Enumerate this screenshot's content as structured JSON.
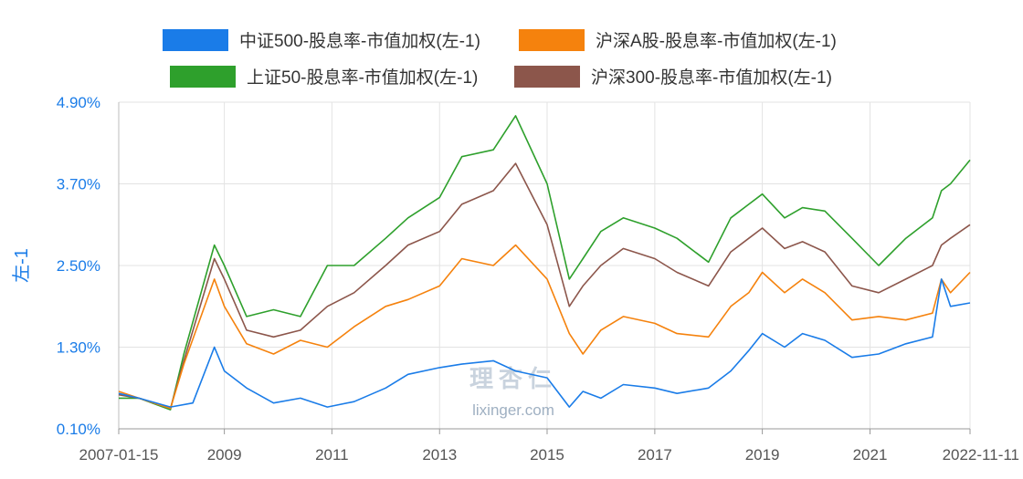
{
  "chart_data": {
    "type": "line",
    "ylabel": "左-1",
    "yticks": [
      "0.10%",
      "1.30%",
      "2.50%",
      "3.70%",
      "4.90%"
    ],
    "ylim": [
      0.1,
      4.9
    ],
    "xticks": [
      "2007-01-15",
      "2009",
      "2011",
      "2013",
      "2015",
      "2017",
      "2019",
      "2021",
      "2022-11-11"
    ],
    "xlim": [
      "2007-01-15",
      "2022-11-11"
    ],
    "grid": true,
    "legend_position": "top",
    "watermark": [
      "理杏仁",
      "lixinger.com"
    ],
    "series": [
      {
        "name": "中证500-股息率-市值加权(左-1)",
        "color": "#1a7ce8",
        "points": [
          [
            "2007-01-15",
            0.62
          ],
          [
            "2007-06-01",
            0.55
          ],
          [
            "2008-01-01",
            0.42
          ],
          [
            "2008-06-01",
            0.48
          ],
          [
            "2008-10-25",
            1.3
          ],
          [
            "2009-01-01",
            0.95
          ],
          [
            "2009-06-01",
            0.7
          ],
          [
            "2009-12-01",
            0.48
          ],
          [
            "2010-06-01",
            0.55
          ],
          [
            "2010-12-01",
            0.42
          ],
          [
            "2011-06-01",
            0.5
          ],
          [
            "2012-01-01",
            0.7
          ],
          [
            "2012-06-01",
            0.9
          ],
          [
            "2013-01-01",
            1.0
          ],
          [
            "2013-06-01",
            1.05
          ],
          [
            "2014-01-01",
            1.1
          ],
          [
            "2014-06-01",
            0.95
          ],
          [
            "2015-01-01",
            0.85
          ],
          [
            "2015-06-01",
            0.42
          ],
          [
            "2015-09-01",
            0.65
          ],
          [
            "2016-01-01",
            0.55
          ],
          [
            "2016-06-01",
            0.75
          ],
          [
            "2017-01-01",
            0.7
          ],
          [
            "2017-06-01",
            0.62
          ],
          [
            "2018-01-01",
            0.7
          ],
          [
            "2018-06-01",
            0.95
          ],
          [
            "2018-10-01",
            1.25
          ],
          [
            "2019-01-01",
            1.5
          ],
          [
            "2019-06-01",
            1.3
          ],
          [
            "2019-10-01",
            1.5
          ],
          [
            "2020-03-01",
            1.4
          ],
          [
            "2020-09-01",
            1.15
          ],
          [
            "2021-03-01",
            1.2
          ],
          [
            "2021-09-01",
            1.35
          ],
          [
            "2022-03-01",
            1.45
          ],
          [
            "2022-05-01",
            2.3
          ],
          [
            "2022-07-01",
            1.9
          ],
          [
            "2022-11-11",
            1.95
          ]
        ]
      },
      {
        "name": "沪深A股-股息率-市值加权(左-1)",
        "color": "#f5820d",
        "points": [
          [
            "2007-01-15",
            0.65
          ],
          [
            "2007-06-01",
            0.55
          ],
          [
            "2008-01-01",
            0.4
          ],
          [
            "2008-04-01",
            1.05
          ],
          [
            "2008-10-25",
            2.3
          ],
          [
            "2009-01-01",
            1.9
          ],
          [
            "2009-06-01",
            1.35
          ],
          [
            "2009-12-01",
            1.2
          ],
          [
            "2010-06-01",
            1.4
          ],
          [
            "2010-12-01",
            1.3
          ],
          [
            "2011-06-01",
            1.6
          ],
          [
            "2012-01-01",
            1.9
          ],
          [
            "2012-06-01",
            2.0
          ],
          [
            "2013-01-01",
            2.2
          ],
          [
            "2013-06-01",
            2.6
          ],
          [
            "2014-01-01",
            2.5
          ],
          [
            "2014-06-01",
            2.8
          ],
          [
            "2015-01-01",
            2.3
          ],
          [
            "2015-06-01",
            1.5
          ],
          [
            "2015-09-01",
            1.2
          ],
          [
            "2016-01-01",
            1.55
          ],
          [
            "2016-06-01",
            1.75
          ],
          [
            "2017-01-01",
            1.65
          ],
          [
            "2017-06-01",
            1.5
          ],
          [
            "2018-01-01",
            1.45
          ],
          [
            "2018-06-01",
            1.9
          ],
          [
            "2018-10-01",
            2.1
          ],
          [
            "2019-01-01",
            2.4
          ],
          [
            "2019-06-01",
            2.1
          ],
          [
            "2019-10-01",
            2.3
          ],
          [
            "2020-03-01",
            2.1
          ],
          [
            "2020-09-01",
            1.7
          ],
          [
            "2021-03-01",
            1.75
          ],
          [
            "2021-09-01",
            1.7
          ],
          [
            "2022-03-01",
            1.8
          ],
          [
            "2022-05-01",
            2.3
          ],
          [
            "2022-07-01",
            2.1
          ],
          [
            "2022-11-11",
            2.4
          ]
        ]
      },
      {
        "name": "上证50-股息率-市值加权(左-1)",
        "color": "#2ea02c",
        "points": [
          [
            "2007-01-15",
            0.55
          ],
          [
            "2007-06-01",
            0.55
          ],
          [
            "2008-01-01",
            0.38
          ],
          [
            "2008-04-01",
            1.2
          ],
          [
            "2008-10-25",
            2.8
          ],
          [
            "2009-01-01",
            2.5
          ],
          [
            "2009-06-01",
            1.75
          ],
          [
            "2009-12-01",
            1.85
          ],
          [
            "2010-06-01",
            1.75
          ],
          [
            "2010-12-01",
            2.5
          ],
          [
            "2011-06-01",
            2.5
          ],
          [
            "2012-01-01",
            2.9
          ],
          [
            "2012-06-01",
            3.2
          ],
          [
            "2013-01-01",
            3.5
          ],
          [
            "2013-06-01",
            4.1
          ],
          [
            "2014-01-01",
            4.2
          ],
          [
            "2014-06-01",
            4.7
          ],
          [
            "2015-01-01",
            3.7
          ],
          [
            "2015-06-01",
            2.3
          ],
          [
            "2015-09-01",
            2.6
          ],
          [
            "2016-01-01",
            3.0
          ],
          [
            "2016-06-01",
            3.2
          ],
          [
            "2017-01-01",
            3.05
          ],
          [
            "2017-06-01",
            2.9
          ],
          [
            "2018-01-01",
            2.55
          ],
          [
            "2018-06-01",
            3.2
          ],
          [
            "2018-10-01",
            3.4
          ],
          [
            "2019-01-01",
            3.55
          ],
          [
            "2019-06-01",
            3.2
          ],
          [
            "2019-10-01",
            3.35
          ],
          [
            "2020-03-01",
            3.3
          ],
          [
            "2020-09-01",
            2.9
          ],
          [
            "2021-03-01",
            2.5
          ],
          [
            "2021-09-01",
            2.9
          ],
          [
            "2022-03-01",
            3.2
          ],
          [
            "2022-05-01",
            3.6
          ],
          [
            "2022-07-01",
            3.7
          ],
          [
            "2022-11-11",
            4.05
          ]
        ]
      },
      {
        "name": "沪深300-股息率-市值加权(左-1)",
        "color": "#8c564b",
        "points": [
          [
            "2007-01-15",
            0.6
          ],
          [
            "2007-06-01",
            0.55
          ],
          [
            "2008-01-01",
            0.4
          ],
          [
            "2008-04-01",
            1.1
          ],
          [
            "2008-10-25",
            2.6
          ],
          [
            "2009-01-01",
            2.3
          ],
          [
            "2009-06-01",
            1.55
          ],
          [
            "2009-12-01",
            1.45
          ],
          [
            "2010-06-01",
            1.55
          ],
          [
            "2010-12-01",
            1.9
          ],
          [
            "2011-06-01",
            2.1
          ],
          [
            "2012-01-01",
            2.5
          ],
          [
            "2012-06-01",
            2.8
          ],
          [
            "2013-01-01",
            3.0
          ],
          [
            "2013-06-01",
            3.4
          ],
          [
            "2014-01-01",
            3.6
          ],
          [
            "2014-06-01",
            4.0
          ],
          [
            "2015-01-01",
            3.1
          ],
          [
            "2015-06-01",
            1.9
          ],
          [
            "2015-09-01",
            2.2
          ],
          [
            "2016-01-01",
            2.5
          ],
          [
            "2016-06-01",
            2.75
          ],
          [
            "2017-01-01",
            2.6
          ],
          [
            "2017-06-01",
            2.4
          ],
          [
            "2018-01-01",
            2.2
          ],
          [
            "2018-06-01",
            2.7
          ],
          [
            "2018-10-01",
            2.9
          ],
          [
            "2019-01-01",
            3.05
          ],
          [
            "2019-06-01",
            2.75
          ],
          [
            "2019-10-01",
            2.85
          ],
          [
            "2020-03-01",
            2.7
          ],
          [
            "2020-09-01",
            2.2
          ],
          [
            "2021-03-01",
            2.1
          ],
          [
            "2021-09-01",
            2.3
          ],
          [
            "2022-03-01",
            2.5
          ],
          [
            "2022-05-01",
            2.8
          ],
          [
            "2022-07-01",
            2.9
          ],
          [
            "2022-11-11",
            3.1
          ]
        ]
      }
    ]
  }
}
